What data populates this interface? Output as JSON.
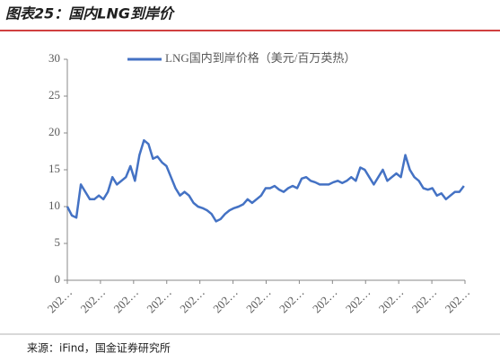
{
  "chart_data": {
    "type": "line",
    "title": "图表25：国内LNG到岸价",
    "source": "来源：iFind，国金证券研究所",
    "xlim": [
      0,
      12
    ],
    "xticks": [
      {
        "value": 0,
        "label": "202…"
      },
      {
        "value": 1,
        "label": "202…"
      },
      {
        "value": 2,
        "label": "202…"
      },
      {
        "value": 3,
        "label": "202…"
      },
      {
        "value": 4,
        "label": "202…"
      },
      {
        "value": 5,
        "label": "202…"
      },
      {
        "value": 6,
        "label": "202…"
      },
      {
        "value": 7,
        "label": "202…"
      },
      {
        "value": 8,
        "label": "202…"
      },
      {
        "value": 9,
        "label": "202…"
      },
      {
        "value": 10,
        "label": "202…"
      },
      {
        "value": 11,
        "label": "202…"
      },
      {
        "value": 12,
        "label": "202…"
      }
    ],
    "ylim": [
      0,
      30
    ],
    "yticks": [
      0,
      5,
      10,
      15,
      20,
      25,
      30
    ],
    "grid": false,
    "legend": "top",
    "x": [
      0,
      0.136,
      0.272,
      0.408,
      0.544,
      0.68,
      0.816,
      0.952,
      1.088,
      1.224,
      1.36,
      1.496,
      1.632,
      1.768,
      1.904,
      2.04,
      2.176,
      2.312,
      2.448,
      2.584,
      2.72,
      2.856,
      2.992,
      3.128,
      3.264,
      3.4,
      3.536,
      3.672,
      3.808,
      3.944,
      4.08,
      4.216,
      4.352,
      4.488,
      4.624,
      4.76,
      4.896,
      5.032,
      5.168,
      5.304,
      5.44,
      5.576,
      5.712,
      5.848,
      5.984,
      6.12,
      6.256,
      6.392,
      6.528,
      6.664,
      6.8,
      6.936,
      7.072,
      7.208,
      7.344,
      7.48,
      7.616,
      7.752,
      7.888,
      8.024,
      8.16,
      8.296,
      8.432,
      8.568,
      8.704,
      8.84,
      8.976,
      9.112,
      9.248,
      9.384,
      9.52,
      9.656,
      9.792,
      9.928,
      10.064,
      10.2,
      10.336,
      10.472,
      10.608,
      10.744,
      10.88,
      11.016,
      11.152,
      11.288,
      11.424,
      11.56,
      11.696,
      11.832,
      11.968
    ],
    "series": [
      {
        "name": "LNG国内到岸价格（美元/百万英热）",
        "color": "#4472c4",
        "values": [
          10,
          8.8,
          8.5,
          13,
          12,
          11,
          11,
          11.5,
          11,
          12,
          14,
          13,
          13.5,
          14,
          15.5,
          13.5,
          17,
          19,
          18.5,
          16.5,
          16.8,
          16,
          15.5,
          14,
          12.5,
          11.5,
          12,
          11.5,
          10.5,
          10,
          9.8,
          9.5,
          9,
          8,
          8.3,
          9,
          9.5,
          9.8,
          10,
          10.3,
          11,
          10.5,
          11,
          11.5,
          12.5,
          12.5,
          12.8,
          12.3,
          12,
          12.5,
          12.8,
          12.5,
          13.8,
          14,
          13.5,
          13.3,
          13,
          13,
          13,
          13.3,
          13.5,
          13.2,
          13.5,
          14,
          13.5,
          15.3,
          15,
          14,
          13,
          14,
          15,
          13.5,
          14,
          14.5,
          14,
          17,
          15,
          14,
          13.5,
          12.5,
          12.3,
          12.5,
          11.5,
          11.8,
          11,
          11.5,
          12,
          12,
          12.8
        ]
      }
    ]
  }
}
